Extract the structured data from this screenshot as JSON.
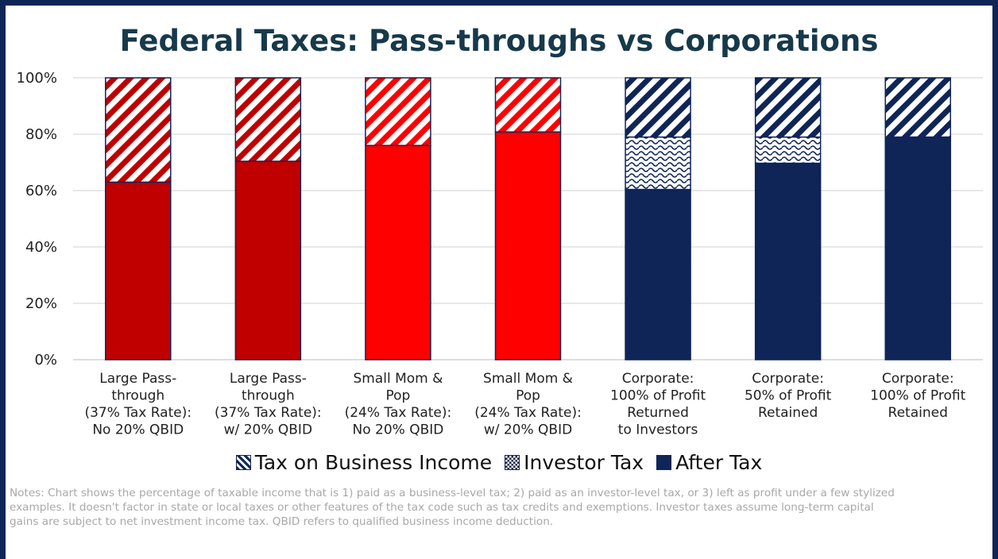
{
  "chart_data": {
    "type": "bar",
    "stacked": true,
    "title": "Federal Taxes: Pass-throughs vs Corporations",
    "ylim": [
      0,
      100
    ],
    "yticks": [
      "0%",
      "20%",
      "40%",
      "60%",
      "80%",
      "100%"
    ],
    "categories": [
      [
        "Large Pass-",
        "through",
        "(37% Tax Rate):",
        "No 20% QBID"
      ],
      [
        "Large Pass-",
        "through",
        "(37% Tax Rate):",
        "w/ 20% QBID"
      ],
      [
        "Small Mom &",
        "Pop",
        "(24% Tax Rate):",
        "No 20% QBID"
      ],
      [
        "Small Mom &",
        "Pop",
        "(24% Tax Rate):",
        "w/ 20% QBID"
      ],
      [
        "Corporate:",
        "100% of Profit",
        "Returned",
        "to Investors"
      ],
      [
        "Corporate:",
        "50% of Profit",
        "Retained"
      ],
      [
        "Corporate:",
        "100% of Profit",
        "Retained"
      ]
    ],
    "series": [
      {
        "name": "After Tax",
        "values": [
          63.0,
          70.4,
          76.0,
          80.8,
          60.4,
          69.7,
          79.0
        ]
      },
      {
        "name": "Investor Tax",
        "values": [
          0,
          0,
          0,
          0,
          18.6,
          9.3,
          0
        ]
      },
      {
        "name": "Tax on Business Income",
        "values": [
          37.0,
          29.6,
          24.0,
          19.2,
          21.0,
          21.0,
          21.0
        ]
      }
    ],
    "bar_colors": [
      "#c00000",
      "#c00000",
      "#ff0000",
      "#ff0000",
      "#0f2557",
      "#0f2557",
      "#0f2557"
    ],
    "legend_position": "bottom",
    "grid": true
  },
  "legend": {
    "business_tax": "Tax on Business Income",
    "investor_tax": "Investor Tax",
    "after_tax": "After Tax"
  },
  "notes": "Notes: Chart shows the percentage of taxable income that is 1) paid as a business-level tax; 2) paid as an investor-level tax, or 3) left as profit under a few stylized examples. It doesn't factor in state or local taxes or other features of the tax code such as tax credits and exemptions. Investor taxes assume long-term capital gains are subject to net investment income tax. QBID refers to qualified business income deduction."
}
